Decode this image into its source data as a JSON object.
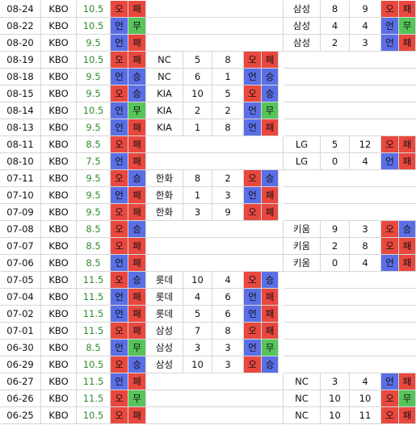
{
  "rows": [
    {
      "date": "08-24",
      "league": "KBO",
      "line": 10.5,
      "ou": {
        "text": "오",
        "color": "#e9483f"
      },
      "result": {
        "text": "패",
        "color": "#e9483f"
      },
      "right": {
        "team": "삼성",
        "score": 8,
        "opp_score": 9,
        "ou": {
          "text": "오",
          "color": "#e9483f"
        },
        "result": {
          "text": "패",
          "color": "#e9483f"
        }
      }
    },
    {
      "date": "08-22",
      "league": "KBO",
      "line": 10.5,
      "ou": {
        "text": "언",
        "color": "#5a6fe6"
      },
      "result": {
        "text": "무",
        "color": "#57c45a"
      },
      "right": {
        "team": "삼성",
        "score": 4,
        "opp_score": 4,
        "ou": {
          "text": "언",
          "color": "#5a6fe6"
        },
        "result": {
          "text": "무",
          "color": "#57c45a"
        }
      }
    },
    {
      "date": "08-20",
      "league": "KBO",
      "line": 9.5,
      "ou": {
        "text": "언",
        "color": "#5a6fe6"
      },
      "result": {
        "text": "패",
        "color": "#e9483f"
      },
      "right": {
        "team": "삼성",
        "score": 2,
        "opp_score": 3,
        "ou": {
          "text": "언",
          "color": "#5a6fe6"
        },
        "result": {
          "text": "패",
          "color": "#e9483f"
        }
      }
    },
    {
      "date": "08-19",
      "league": "KBO",
      "line": 10.5,
      "ou": {
        "text": "오",
        "color": "#e9483f"
      },
      "result": {
        "text": "패",
        "color": "#e9483f"
      },
      "left": {
        "team": "NC",
        "score": 5,
        "opp_score": 8,
        "ou": {
          "text": "오",
          "color": "#e9483f"
        },
        "result": {
          "text": "패",
          "color": "#e9483f"
        }
      }
    },
    {
      "date": "08-18",
      "league": "KBO",
      "line": 9.5,
      "ou": {
        "text": "언",
        "color": "#5a6fe6"
      },
      "result": {
        "text": "승",
        "color": "#5a6fe6"
      },
      "left": {
        "team": "NC",
        "score": 6,
        "opp_score": 1,
        "ou": {
          "text": "언",
          "color": "#5a6fe6"
        },
        "result": {
          "text": "승",
          "color": "#5a6fe6"
        }
      }
    },
    {
      "date": "08-15",
      "league": "KBO",
      "line": 9.5,
      "ou": {
        "text": "오",
        "color": "#e9483f"
      },
      "result": {
        "text": "승",
        "color": "#5a6fe6"
      },
      "left": {
        "team": "KIA",
        "score": 10,
        "opp_score": 5,
        "ou": {
          "text": "오",
          "color": "#e9483f"
        },
        "result": {
          "text": "승",
          "color": "#5a6fe6"
        }
      }
    },
    {
      "date": "08-14",
      "league": "KBO",
      "line": 10.5,
      "ou": {
        "text": "언",
        "color": "#5a6fe6"
      },
      "result": {
        "text": "무",
        "color": "#57c45a"
      },
      "left": {
        "team": "KIA",
        "score": 2,
        "opp_score": 2,
        "ou": {
          "text": "언",
          "color": "#5a6fe6"
        },
        "result": {
          "text": "무",
          "color": "#57c45a"
        }
      }
    },
    {
      "date": "08-13",
      "league": "KBO",
      "line": 9.5,
      "ou": {
        "text": "언",
        "color": "#5a6fe6"
      },
      "result": {
        "text": "패",
        "color": "#e9483f"
      },
      "left": {
        "team": "KIA",
        "score": 1,
        "opp_score": 8,
        "ou": {
          "text": "언",
          "color": "#5a6fe6"
        },
        "result": {
          "text": "패",
          "color": "#e9483f"
        }
      }
    },
    {
      "date": "08-11",
      "league": "KBO",
      "line": 8.5,
      "ou": {
        "text": "오",
        "color": "#e9483f"
      },
      "result": {
        "text": "패",
        "color": "#e9483f"
      },
      "right": {
        "team": "LG",
        "score": 5,
        "opp_score": 12,
        "ou": {
          "text": "오",
          "color": "#e9483f"
        },
        "result": {
          "text": "패",
          "color": "#e9483f"
        }
      }
    },
    {
      "date": "08-10",
      "league": "KBO",
      "line": 7.5,
      "ou": {
        "text": "언",
        "color": "#5a6fe6"
      },
      "result": {
        "text": "패",
        "color": "#e9483f"
      },
      "right": {
        "team": "LG",
        "score": 0,
        "opp_score": 4,
        "ou": {
          "text": "언",
          "color": "#5a6fe6"
        },
        "result": {
          "text": "패",
          "color": "#e9483f"
        }
      }
    },
    {
      "date": "07-11",
      "league": "KBO",
      "line": 9.5,
      "ou": {
        "text": "오",
        "color": "#e9483f"
      },
      "result": {
        "text": "승",
        "color": "#5a6fe6"
      },
      "left": {
        "team": "한화",
        "score": 8,
        "opp_score": 2,
        "ou": {
          "text": "오",
          "color": "#e9483f"
        },
        "result": {
          "text": "승",
          "color": "#5a6fe6"
        }
      }
    },
    {
      "date": "07-10",
      "league": "KBO",
      "line": 9.5,
      "ou": {
        "text": "언",
        "color": "#5a6fe6"
      },
      "result": {
        "text": "패",
        "color": "#e9483f"
      },
      "left": {
        "team": "한화",
        "score": 1,
        "opp_score": 3,
        "ou": {
          "text": "언",
          "color": "#5a6fe6"
        },
        "result": {
          "text": "패",
          "color": "#e9483f"
        }
      }
    },
    {
      "date": "07-09",
      "league": "KBO",
      "line": 9.5,
      "ou": {
        "text": "오",
        "color": "#e9483f"
      },
      "result": {
        "text": "패",
        "color": "#e9483f"
      },
      "left": {
        "team": "한화",
        "score": 3,
        "opp_score": 9,
        "ou": {
          "text": "오",
          "color": "#e9483f"
        },
        "result": {
          "text": "패",
          "color": "#e9483f"
        }
      }
    },
    {
      "date": "07-08",
      "league": "KBO",
      "line": 8.5,
      "ou": {
        "text": "오",
        "color": "#e9483f"
      },
      "result": {
        "text": "승",
        "color": "#5a6fe6"
      },
      "right": {
        "team": "키움",
        "score": 9,
        "opp_score": 3,
        "ou": {
          "text": "오",
          "color": "#e9483f"
        },
        "result": {
          "text": "승",
          "color": "#5a6fe6"
        }
      }
    },
    {
      "date": "07-07",
      "league": "KBO",
      "line": 8.5,
      "ou": {
        "text": "오",
        "color": "#e9483f"
      },
      "result": {
        "text": "패",
        "color": "#e9483f"
      },
      "right": {
        "team": "키움",
        "score": 2,
        "opp_score": 8,
        "ou": {
          "text": "오",
          "color": "#e9483f"
        },
        "result": {
          "text": "패",
          "color": "#e9483f"
        }
      }
    },
    {
      "date": "07-06",
      "league": "KBO",
      "line": 8.5,
      "ou": {
        "text": "언",
        "color": "#5a6fe6"
      },
      "result": {
        "text": "패",
        "color": "#e9483f"
      },
      "right": {
        "team": "키움",
        "score": 0,
        "opp_score": 4,
        "ou": {
          "text": "언",
          "color": "#5a6fe6"
        },
        "result": {
          "text": "패",
          "color": "#e9483f"
        }
      }
    },
    {
      "date": "07-05",
      "league": "KBO",
      "line": 11.5,
      "ou": {
        "text": "오",
        "color": "#e9483f"
      },
      "result": {
        "text": "승",
        "color": "#5a6fe6"
      },
      "left": {
        "team": "롯데",
        "score": 10,
        "opp_score": 4,
        "ou": {
          "text": "오",
          "color": "#e9483f"
        },
        "result": {
          "text": "승",
          "color": "#5a6fe6"
        }
      }
    },
    {
      "date": "07-04",
      "league": "KBO",
      "line": 11.5,
      "ou": {
        "text": "언",
        "color": "#5a6fe6"
      },
      "result": {
        "text": "패",
        "color": "#e9483f"
      },
      "left": {
        "team": "롯데",
        "score": 4,
        "opp_score": 6,
        "ou": {
          "text": "언",
          "color": "#5a6fe6"
        },
        "result": {
          "text": "패",
          "color": "#e9483f"
        }
      }
    },
    {
      "date": "07-02",
      "league": "KBO",
      "line": 11.5,
      "ou": {
        "text": "언",
        "color": "#5a6fe6"
      },
      "result": {
        "text": "패",
        "color": "#e9483f"
      },
      "left": {
        "team": "롯데",
        "score": 5,
        "opp_score": 6,
        "ou": {
          "text": "언",
          "color": "#5a6fe6"
        },
        "result": {
          "text": "패",
          "color": "#e9483f"
        }
      }
    },
    {
      "date": "07-01",
      "league": "KBO",
      "line": 11.5,
      "ou": {
        "text": "오",
        "color": "#e9483f"
      },
      "result": {
        "text": "패",
        "color": "#e9483f"
      },
      "left": {
        "team": "삼성",
        "score": 7,
        "opp_score": 8,
        "ou": {
          "text": "오",
          "color": "#e9483f"
        },
        "result": {
          "text": "패",
          "color": "#e9483f"
        }
      }
    },
    {
      "date": "06-30",
      "league": "KBO",
      "line": 8.5,
      "ou": {
        "text": "언",
        "color": "#5a6fe6"
      },
      "result": {
        "text": "무",
        "color": "#57c45a"
      },
      "left": {
        "team": "삼성",
        "score": 3,
        "opp_score": 3,
        "ou": {
          "text": "언",
          "color": "#5a6fe6"
        },
        "result": {
          "text": "무",
          "color": "#57c45a"
        }
      }
    },
    {
      "date": "06-29",
      "league": "KBO",
      "line": 10.5,
      "ou": {
        "text": "오",
        "color": "#e9483f"
      },
      "result": {
        "text": "승",
        "color": "#5a6fe6"
      },
      "left": {
        "team": "삼성",
        "score": 10,
        "opp_score": 3,
        "ou": {
          "text": "오",
          "color": "#e9483f"
        },
        "result": {
          "text": "승",
          "color": "#5a6fe6"
        }
      }
    },
    {
      "date": "06-27",
      "league": "KBO",
      "line": 11.5,
      "ou": {
        "text": "언",
        "color": "#5a6fe6"
      },
      "result": {
        "text": "패",
        "color": "#e9483f"
      },
      "right": {
        "team": "NC",
        "score": 3,
        "opp_score": 4,
        "ou": {
          "text": "언",
          "color": "#5a6fe6"
        },
        "result": {
          "text": "패",
          "color": "#e9483f"
        }
      }
    },
    {
      "date": "06-26",
      "league": "KBO",
      "line": 11.5,
      "ou": {
        "text": "오",
        "color": "#e9483f"
      },
      "result": {
        "text": "무",
        "color": "#57c45a"
      },
      "right": {
        "team": "NC",
        "score": 10,
        "opp_score": 10,
        "ou": {
          "text": "오",
          "color": "#e9483f"
        },
        "result": {
          "text": "무",
          "color": "#57c45a"
        }
      }
    },
    {
      "date": "06-25",
      "league": "KBO",
      "line": 10.5,
      "ou": {
        "text": "오",
        "color": "#e9483f"
      },
      "result": {
        "text": "패",
        "color": "#e9483f"
      },
      "right": {
        "team": "NC",
        "score": 10,
        "opp_score": 11,
        "ou": {
          "text": "오",
          "color": "#e9483f"
        },
        "result": {
          "text": "패",
          "color": "#e9483f"
        }
      }
    }
  ]
}
